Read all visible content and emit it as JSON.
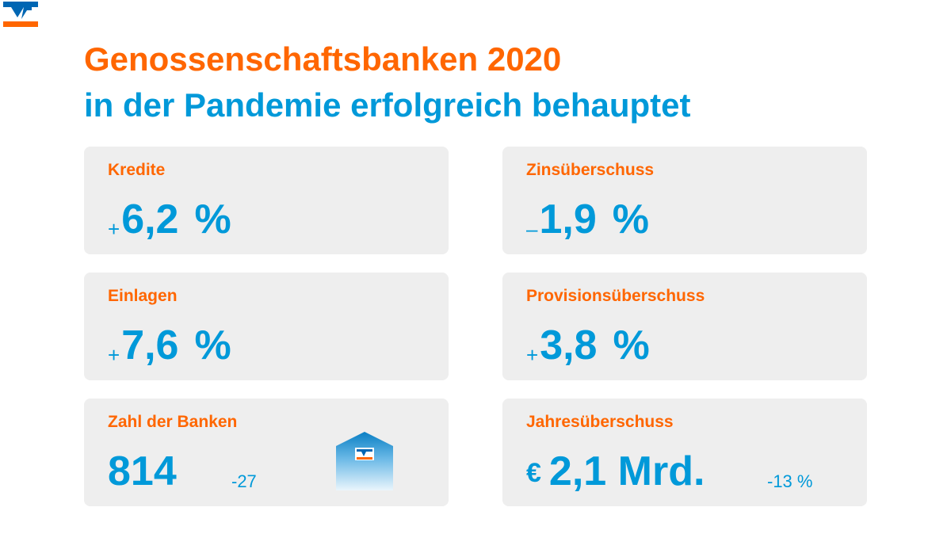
{
  "title": {
    "line1": "Genossenschaftsbanken 2020",
    "line2": "in der Pandemie erfolgreich behauptet"
  },
  "colors": {
    "orange": "#ff6600",
    "blue": "#0099d9",
    "card_bg": "#eeeeee"
  },
  "logo_icon": "vr-bank-logo",
  "cards": {
    "kredite": {
      "label": "Kredite",
      "sign": "+",
      "value": "6,2",
      "unit": "%"
    },
    "zins": {
      "label": "Zinsüberschuss",
      "sign": "–",
      "value": "1,9",
      "unit": "%"
    },
    "einlagen": {
      "label": "Einlagen",
      "sign": "+",
      "value": "7,6",
      "unit": "%"
    },
    "provision": {
      "label": "Provisionsüberschuss",
      "sign": "+",
      "value": "3,8",
      "unit": "%"
    },
    "banken": {
      "label": "Zahl der Banken",
      "value": "814",
      "delta": "-27",
      "icon": "bank-house-icon"
    },
    "jahres": {
      "label": "Jahresüberschuss",
      "currency": "€",
      "value": "2,1 Mrd.",
      "delta": "-13 %"
    }
  }
}
